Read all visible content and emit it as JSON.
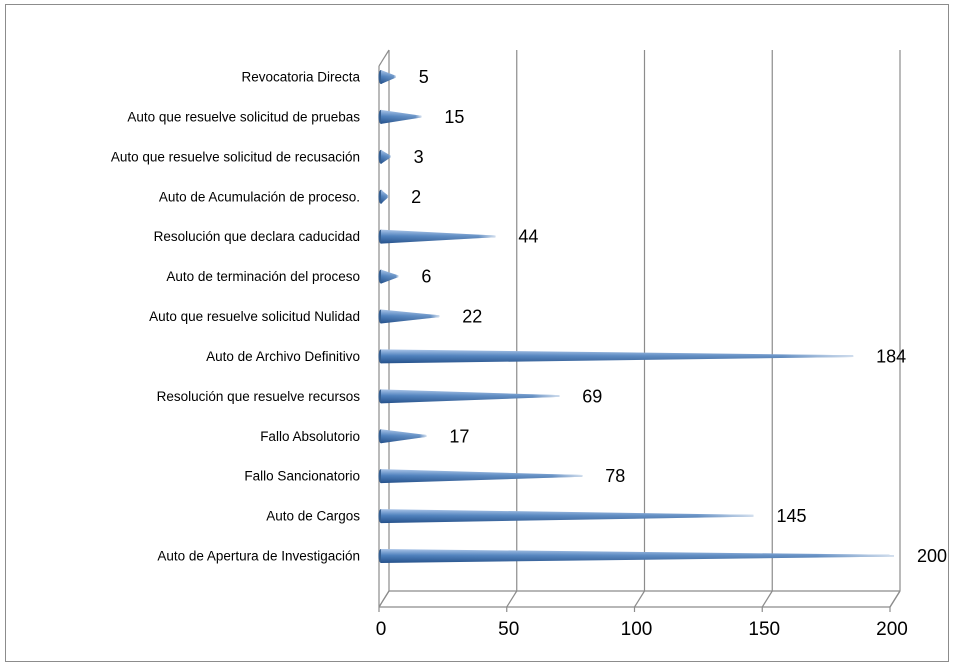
{
  "chart_data": {
    "type": "bar",
    "orientation": "horizontal",
    "style": "3d-cone",
    "bar_color": "#4f81bd",
    "categories": [
      "Revocatoria Directa",
      "Auto que resuelve solicitud de pruebas",
      "Auto que resuelve solicitud de recusación",
      "Auto de Acumulación de proceso.",
      "Resolución que declara caducidad",
      "Auto de terminación del proceso",
      "Auto que resuelve solicitud Nulidad",
      "Auto de Archivo Definitivo",
      "Resolución que resuelve recursos",
      "Fallo Absolutorio",
      "Fallo Sancionatorio",
      "Auto de Cargos",
      "Auto de Apertura de Investigación"
    ],
    "values": [
      5,
      15,
      3,
      2,
      44,
      6,
      22,
      184,
      69,
      17,
      78,
      145,
      200
    ],
    "xlim": [
      0,
      200
    ],
    "xticks": [
      0,
      50,
      100,
      150,
      200
    ],
    "grid": true,
    "legend": "none"
  }
}
